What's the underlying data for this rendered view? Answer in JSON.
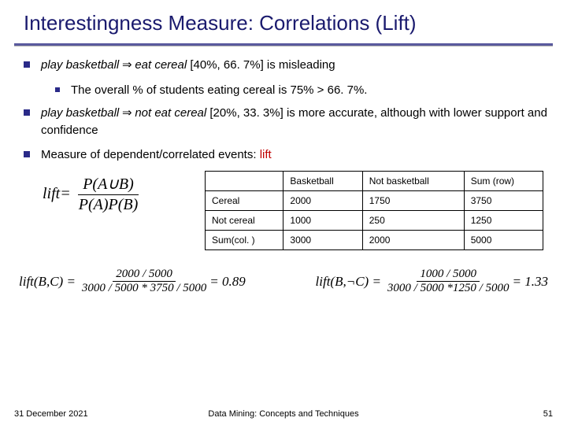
{
  "title": "Interestingness Measure: Correlations (Lift)",
  "bullets": {
    "b1_pre": "play basketball",
    "b1_arrow": " ⇒ ",
    "b1_mid": "eat cereal",
    "b1_post": " [40%, 66. 7%]  is misleading",
    "b1_sub": "The overall % of students eating cereal is 75% > 66. 7%.",
    "b2_pre": "play basketball",
    "b2_arrow": " ⇒ ",
    "b2_mid": "not eat cereal",
    "b2_post": " [20%, 33. 3%] is more accurate, although with lower support and confidence",
    "b3_pre": "Measure of dependent/correlated events: ",
    "b3_red": "lift"
  },
  "formula1": {
    "lhs": "lift",
    "eq": " = ",
    "num": "P(A∪B)",
    "den": "P(A)P(B)"
  },
  "table": {
    "headers": [
      "",
      "Basketball",
      "Not basketball",
      "Sum (row)"
    ],
    "rows": [
      [
        "Cereal",
        "2000",
        "1750",
        "3750"
      ],
      [
        "Not cereal",
        "1000",
        "250",
        "1250"
      ],
      [
        "Sum(col. )",
        "3000",
        "2000",
        "5000"
      ]
    ]
  },
  "formula2": {
    "lhs": "lift(B,C) = ",
    "num": "2000 / 5000",
    "den": "3000 / 5000 * 3750 / 5000",
    "rhs": " = 0.89"
  },
  "formula3": {
    "lhs": "lift(B,¬C) = ",
    "num": "1000 / 5000",
    "den": "3000 / 5000 *1250 / 5000",
    "rhs": " = 1.33"
  },
  "footer": {
    "date": "31 December 2021",
    "center": "Data Mining: Concepts and Techniques",
    "page": "51"
  }
}
